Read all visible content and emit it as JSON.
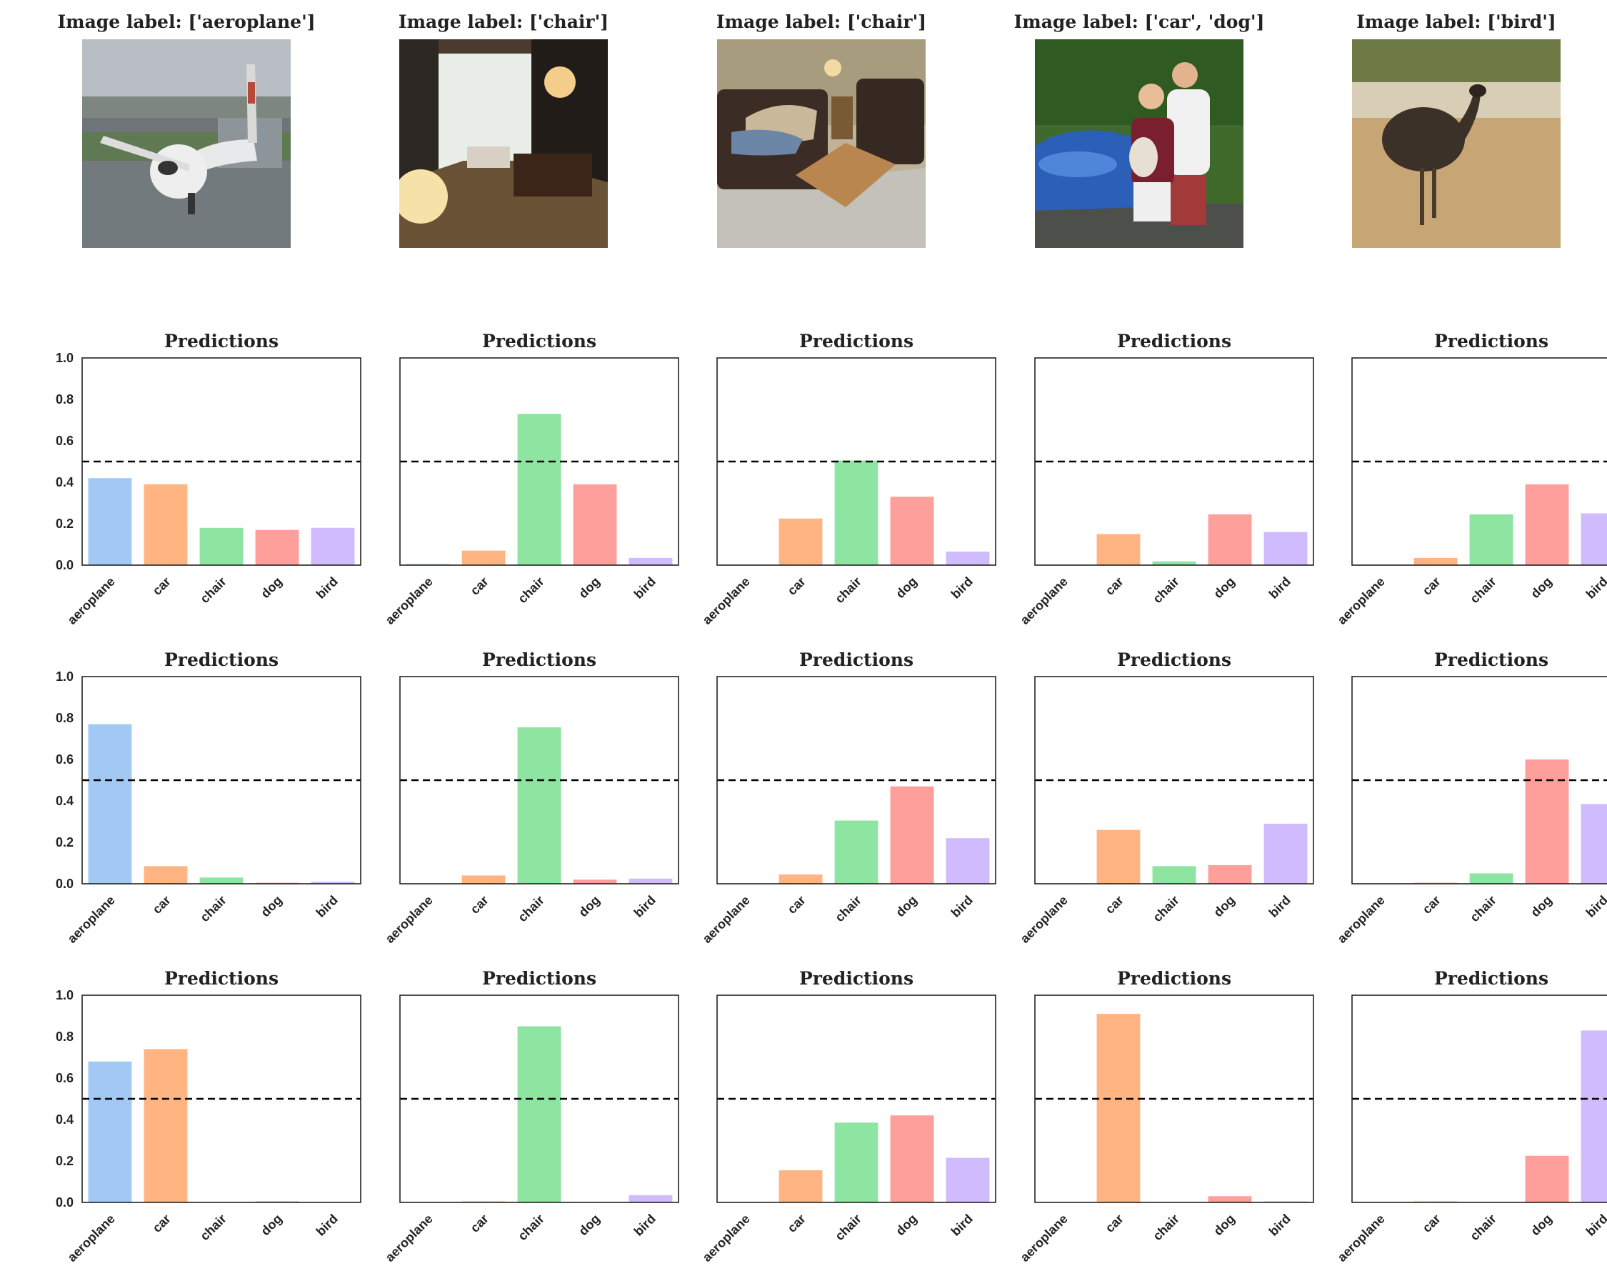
{
  "images": [
    {
      "title": "Image label: ['aeroplane']",
      "subject": "aeroplane"
    },
    {
      "title": "Image label: ['chair']",
      "subject": "living-room"
    },
    {
      "title": "Image label: ['chair']",
      "subject": "sofa-room"
    },
    {
      "title": "Image label: ['car', 'dog']",
      "subject": "people-car-dog"
    },
    {
      "title": "Image label: ['bird']",
      "subject": "emu"
    }
  ],
  "colors": {
    "aeroplane": "#a1c9f4",
    "car": "#ffb482",
    "chair": "#8de5a1",
    "dog": "#ff9f9b",
    "bird": "#d0bbff",
    "threshold_line": "#000000"
  },
  "chart_data": [
    {
      "type": "bar",
      "title": "Predictions",
      "categories": [
        "aeroplane",
        "car",
        "chair",
        "dog",
        "bird"
      ],
      "values": [
        0.42,
        0.39,
        0.18,
        0.17,
        0.18
      ],
      "ylim": [
        0,
        1
      ],
      "yticks": [
        "0.0",
        "0.2",
        "0.4",
        "0.6",
        "0.8",
        "1.0"
      ],
      "threshold": 0.5
    },
    {
      "type": "bar",
      "title": "Predictions",
      "categories": [
        "aeroplane",
        "car",
        "chair",
        "dog",
        "bird"
      ],
      "values": [
        0.005,
        0.07,
        0.73,
        0.39,
        0.035
      ],
      "ylim": [
        0,
        1
      ],
      "threshold": 0.5
    },
    {
      "type": "bar",
      "title": "Predictions",
      "categories": [
        "aeroplane",
        "car",
        "chair",
        "dog",
        "bird"
      ],
      "values": [
        0.0,
        0.225,
        0.505,
        0.33,
        0.065
      ],
      "ylim": [
        0,
        1
      ],
      "threshold": 0.5
    },
    {
      "type": "bar",
      "title": "Predictions",
      "categories": [
        "aeroplane",
        "car",
        "chair",
        "dog",
        "bird"
      ],
      "values": [
        0.0,
        0.15,
        0.018,
        0.245,
        0.16
      ],
      "ylim": [
        0,
        1
      ],
      "threshold": 0.5
    },
    {
      "type": "bar",
      "title": "Predictions",
      "categories": [
        "aeroplane",
        "car",
        "chair",
        "dog",
        "bird"
      ],
      "values": [
        0.0,
        0.035,
        0.245,
        0.39,
        0.25
      ],
      "ylim": [
        0,
        1
      ],
      "threshold": 0.5
    },
    {
      "type": "bar",
      "title": "Predictions",
      "categories": [
        "aeroplane",
        "car",
        "chair",
        "dog",
        "bird"
      ],
      "values": [
        0.77,
        0.085,
        0.03,
        0.005,
        0.01
      ],
      "ylim": [
        0,
        1
      ],
      "yticks": [
        "0.0",
        "0.2",
        "0.4",
        "0.6",
        "0.8",
        "1.0"
      ],
      "threshold": 0.5
    },
    {
      "type": "bar",
      "title": "Predictions",
      "categories": [
        "aeroplane",
        "car",
        "chair",
        "dog",
        "bird"
      ],
      "values": [
        0.0,
        0.04,
        0.755,
        0.02,
        0.025
      ],
      "ylim": [
        0,
        1
      ],
      "threshold": 0.5
    },
    {
      "type": "bar",
      "title": "Predictions",
      "categories": [
        "aeroplane",
        "car",
        "chair",
        "dog",
        "bird"
      ],
      "values": [
        0.0,
        0.045,
        0.305,
        0.47,
        0.22
      ],
      "ylim": [
        0,
        1
      ],
      "threshold": 0.5
    },
    {
      "type": "bar",
      "title": "Predictions",
      "categories": [
        "aeroplane",
        "car",
        "chair",
        "dog",
        "bird"
      ],
      "values": [
        0.0,
        0.26,
        0.085,
        0.09,
        0.29
      ],
      "ylim": [
        0,
        1
      ],
      "threshold": 0.5
    },
    {
      "type": "bar",
      "title": "Predictions",
      "categories": [
        "aeroplane",
        "car",
        "chair",
        "dog",
        "bird"
      ],
      "values": [
        0.0,
        0.005,
        0.05,
        0.6,
        0.385
      ],
      "ylim": [
        0,
        1
      ],
      "threshold": 0.5
    },
    {
      "type": "bar",
      "title": "Predictions",
      "categories": [
        "aeroplane",
        "car",
        "chair",
        "dog",
        "bird"
      ],
      "values": [
        0.68,
        0.74,
        0.0,
        0.005,
        0.0
      ],
      "ylim": [
        0,
        1
      ],
      "yticks": [
        "0.0",
        "0.2",
        "0.4",
        "0.6",
        "0.8",
        "1.0"
      ],
      "threshold": 0.5
    },
    {
      "type": "bar",
      "title": "Predictions",
      "categories": [
        "aeroplane",
        "car",
        "chair",
        "dog",
        "bird"
      ],
      "values": [
        0.0,
        0.005,
        0.85,
        0.0,
        0.035
      ],
      "ylim": [
        0,
        1
      ],
      "threshold": 0.5
    },
    {
      "type": "bar",
      "title": "Predictions",
      "categories": [
        "aeroplane",
        "car",
        "chair",
        "dog",
        "bird"
      ],
      "values": [
        0.0,
        0.155,
        0.385,
        0.42,
        0.215
      ],
      "ylim": [
        0,
        1
      ],
      "threshold": 0.5
    },
    {
      "type": "bar",
      "title": "Predictions",
      "categories": [
        "aeroplane",
        "car",
        "chair",
        "dog",
        "bird"
      ],
      "values": [
        0.0,
        0.91,
        0.0,
        0.03,
        0.005
      ],
      "ylim": [
        0,
        1
      ],
      "threshold": 0.5
    },
    {
      "type": "bar",
      "title": "Predictions",
      "categories": [
        "aeroplane",
        "car",
        "chair",
        "dog",
        "bird"
      ],
      "values": [
        0.0,
        0.005,
        0.0,
        0.225,
        0.83
      ],
      "ylim": [
        0,
        1
      ],
      "threshold": 0.5
    }
  ]
}
